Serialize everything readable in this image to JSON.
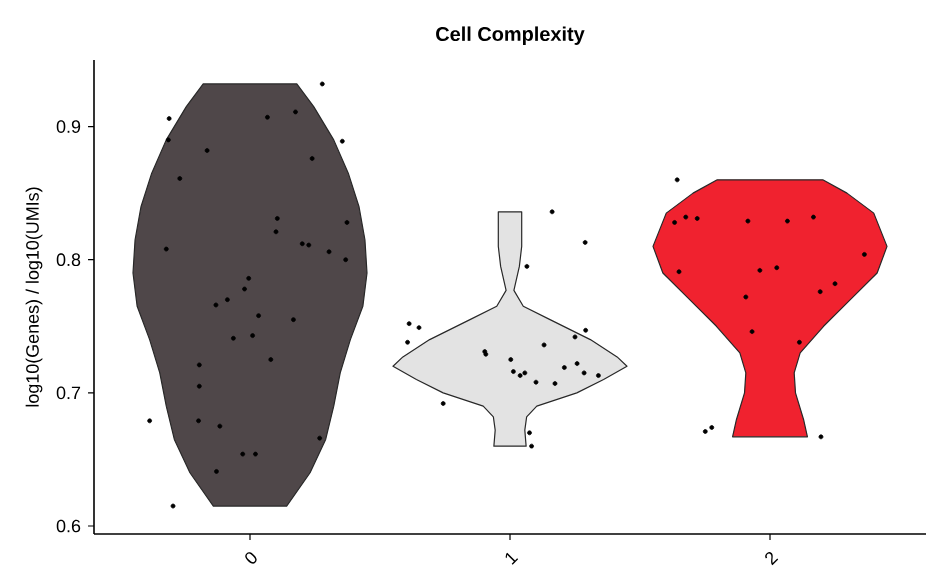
{
  "chart_data": {
    "type": "scatter",
    "title": "Cell Complexity",
    "ylabel": "log10(Genes) / log10(UMIs)",
    "xlim": [
      -0.6,
      2.6
    ],
    "xticks": [
      0,
      1,
      2
    ],
    "ylim": [
      0.594,
      0.95
    ],
    "yticks": [
      0.6,
      0.7,
      0.8,
      0.9
    ],
    "grid": false,
    "series": [
      {
        "type": "area",
        "color": "#4f4749",
        "x": [
          -0.18,
          -0.245,
          -0.322,
          -0.378,
          -0.419,
          -0.442,
          -0.45,
          -0.434,
          -0.386,
          -0.347,
          -0.322,
          -0.291,
          -0.231,
          -0.141,
          0.141,
          0.231,
          0.291,
          0.322,
          0.347,
          0.386,
          0.434,
          0.45,
          0.442,
          0.419,
          0.378,
          0.322,
          0.245,
          0.18
        ],
        "values": [
          0.932,
          0.915,
          0.89,
          0.865,
          0.84,
          0.815,
          0.79,
          0.765,
          0.74,
          0.715,
          0.69,
          0.665,
          0.64,
          0.615,
          0.615,
          0.64,
          0.665,
          0.69,
          0.715,
          0.74,
          0.765,
          0.79,
          0.815,
          0.84,
          0.865,
          0.89,
          0.915,
          0.932
        ]
      },
      {
        "type": "area",
        "color": "#e3e3e3",
        "x": [
          0.955,
          0.955,
          0.964,
          0.985,
          0.949,
          0.846,
          0.691,
          0.588,
          0.55,
          0.64,
          0.743,
          0.897,
          0.936,
          0.943,
          0.938,
          1.062,
          1.057,
          1.064,
          1.103,
          1.257,
          1.36,
          1.45,
          1.412,
          1.309,
          1.154,
          1.051,
          1.015,
          1.036,
          1.045,
          1.045
        ],
        "values": [
          0.836,
          0.81,
          0.795,
          0.777,
          0.765,
          0.755,
          0.74,
          0.727,
          0.72,
          0.71,
          0.7,
          0.69,
          0.682,
          0.672,
          0.66,
          0.66,
          0.672,
          0.682,
          0.69,
          0.7,
          0.71,
          0.72,
          0.727,
          0.74,
          0.755,
          0.765,
          0.777,
          0.795,
          0.81,
          0.836
        ]
      },
      {
        "type": "area",
        "color": "#f0222f",
        "x": [
          1.797,
          1.704,
          1.601,
          1.55,
          1.588,
          1.691,
          1.794,
          1.884,
          1.907,
          1.902,
          1.871,
          1.856,
          2.144,
          2.129,
          2.098,
          2.093,
          2.116,
          2.206,
          2.309,
          2.412,
          2.45,
          2.399,
          2.296,
          2.203
        ],
        "values": [
          0.86,
          0.85,
          0.835,
          0.81,
          0.79,
          0.77,
          0.75,
          0.73,
          0.715,
          0.7,
          0.68,
          0.667,
          0.667,
          0.68,
          0.7,
          0.715,
          0.73,
          0.75,
          0.77,
          0.79,
          0.81,
          0.835,
          0.85,
          0.86
        ]
      },
      {
        "color": "#000000",
        "marker": "circle",
        "x": [
          0.278,
          -0.311,
          0.175,
          0.067,
          0.355,
          -0.314,
          -0.165,
          0.239,
          -0.27,
          0.105,
          0.1,
          0.373,
          -0.322,
          0.201,
          0.226,
          0.304,
          0.368,
          -0.005,
          -0.021,
          -0.087,
          -0.131,
          0.033,
          0.167,
          -0.064,
          0.01,
          0.08,
          -0.195,
          -0.195,
          -0.386,
          -0.198,
          -0.116,
          0.268,
          -0.028,
          0.021,
          -0.129,
          -0.296,
          1.162,
          1.289,
          1.065,
          0.612,
          0.65,
          0.606,
          1.291,
          1.25,
          1.131,
          0.903,
          0.907,
          1.003,
          1.209,
          1.258,
          1.013,
          1.057,
          1.039,
          1.1,
          1.173,
          1.285,
          1.34,
          0.743,
          1.075,
          1.083,
          1.643,
          1.633,
          1.676,
          1.72,
          1.915,
          2.067,
          2.167,
          2.363,
          1.65,
          1.961,
          2.026,
          2.25,
          2.193,
          1.907,
          1.931,
          2.113,
          1.751,
          1.776,
          2.196
        ],
        "values": [
          0.932,
          0.906,
          0.911,
          0.907,
          0.889,
          0.89,
          0.882,
          0.876,
          0.861,
          0.831,
          0.821,
          0.828,
          0.808,
          0.812,
          0.811,
          0.806,
          0.8,
          0.786,
          0.778,
          0.77,
          0.766,
          0.758,
          0.755,
          0.741,
          0.743,
          0.725,
          0.721,
          0.705,
          0.679,
          0.679,
          0.675,
          0.666,
          0.654,
          0.654,
          0.641,
          0.615,
          0.836,
          0.813,
          0.795,
          0.752,
          0.749,
          0.738,
          0.747,
          0.742,
          0.736,
          0.731,
          0.729,
          0.725,
          0.719,
          0.722,
          0.716,
          0.715,
          0.713,
          0.708,
          0.707,
          0.715,
          0.713,
          0.692,
          0.67,
          0.66,
          0.86,
          0.828,
          0.832,
          0.831,
          0.829,
          0.829,
          0.832,
          0.804,
          0.791,
          0.792,
          0.794,
          0.782,
          0.776,
          0.772,
          0.746,
          0.738,
          0.671,
          0.674,
          0.667
        ]
      }
    ]
  }
}
